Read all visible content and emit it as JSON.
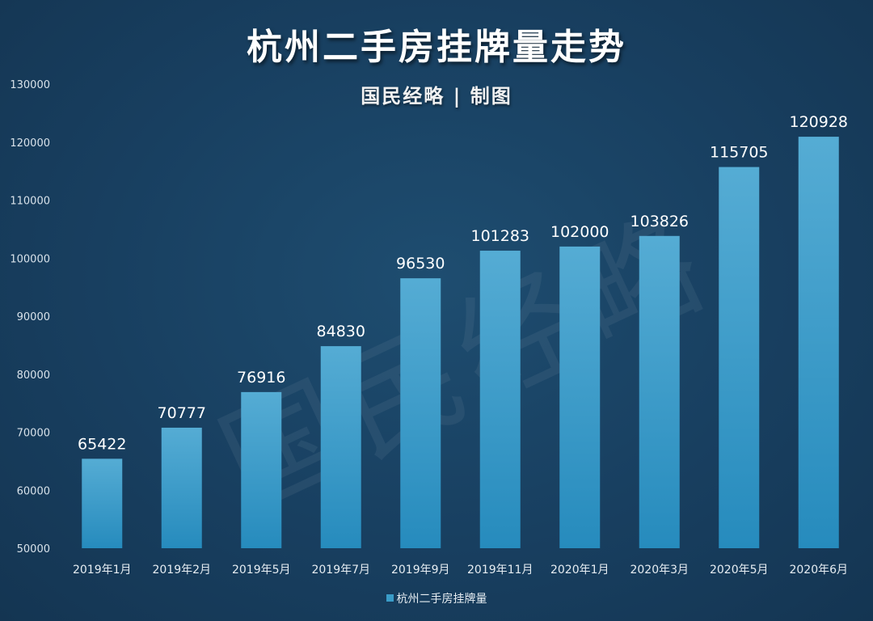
{
  "header": {
    "title": "杭州二手房挂牌量走势",
    "subtitle": "国民经略 | 制图",
    "watermark": "国民经略"
  },
  "colors": {
    "background": "#173f5f",
    "bar_top": "#4fa8d2",
    "bar_bottom": "#2a8ec0",
    "text": "#ffffff"
  },
  "chart_data": {
    "type": "bar",
    "categories": [
      "2019年1月",
      "2019年2月",
      "2019年5月",
      "2019年7月",
      "2019年9月",
      "2019年11月",
      "2020年1月",
      "2020年3月",
      "2020年5月",
      "2020年6月"
    ],
    "series": [
      {
        "name": "杭州二手房挂牌量",
        "values": [
          65422,
          70777,
          76916,
          84830,
          96530,
          101283,
          102000,
          103826,
          115705,
          120928
        ]
      }
    ],
    "title": "杭州二手房挂牌量走势",
    "xlabel": "",
    "ylabel": "",
    "ylim": [
      50000,
      130000
    ],
    "yticks": [
      50000,
      60000,
      70000,
      80000,
      90000,
      100000,
      110000,
      120000,
      130000
    ],
    "grid": false,
    "legend": "bottom"
  }
}
